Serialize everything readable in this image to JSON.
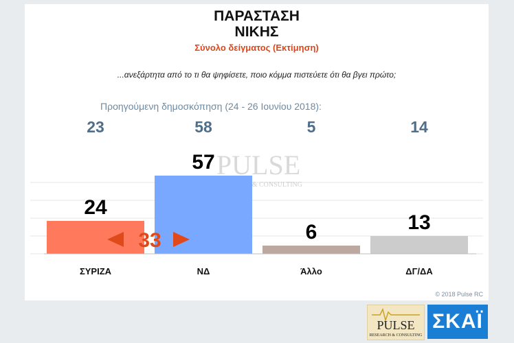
{
  "title_line1": "ΠΑΡΑΣΤΑΣΗ",
  "title_line2": "ΝΙΚΗΣ",
  "subtitle": "Σύνολο δείγματος   (Εκτίμηση)",
  "question": "...ανεξάρτητα από το τι θα ψηφίσετε, ποιο κόμμα πιστεύετε ότι θα βγει πρώτο;",
  "previous_poll_label": "Προηγούμενη δημοσκόπηση (24 - 26 Ιουνίου 2018):",
  "copyright": "© 2018 Pulse RC",
  "gap_label": "33",
  "watermark": {
    "main": "PULSE",
    "sub": "RESEARCH & CONSULTING"
  },
  "pulse_logo": {
    "main": "PULSE",
    "sub": "RESEARCH & CONSULTING"
  },
  "skai_logo": "ΣΚΑΪ",
  "colors": {
    "syriza": "#ff7a5c",
    "nd": "#78a8ff",
    "allo": "#bca89e",
    "dgda": "#cccccc",
    "previous": "#4f6e8a",
    "accent": "#e04a1a"
  },
  "chart_data": {
    "type": "bar",
    "categories": [
      "ΣΥΡΙΖΑ",
      "ΝΔ",
      "Άλλο",
      "ΔΓ/ΔΑ"
    ],
    "values": [
      24,
      57,
      6,
      13
    ],
    "previous_values": [
      23,
      58,
      5,
      14
    ],
    "ylim": [
      0,
      70
    ],
    "grid": true
  }
}
